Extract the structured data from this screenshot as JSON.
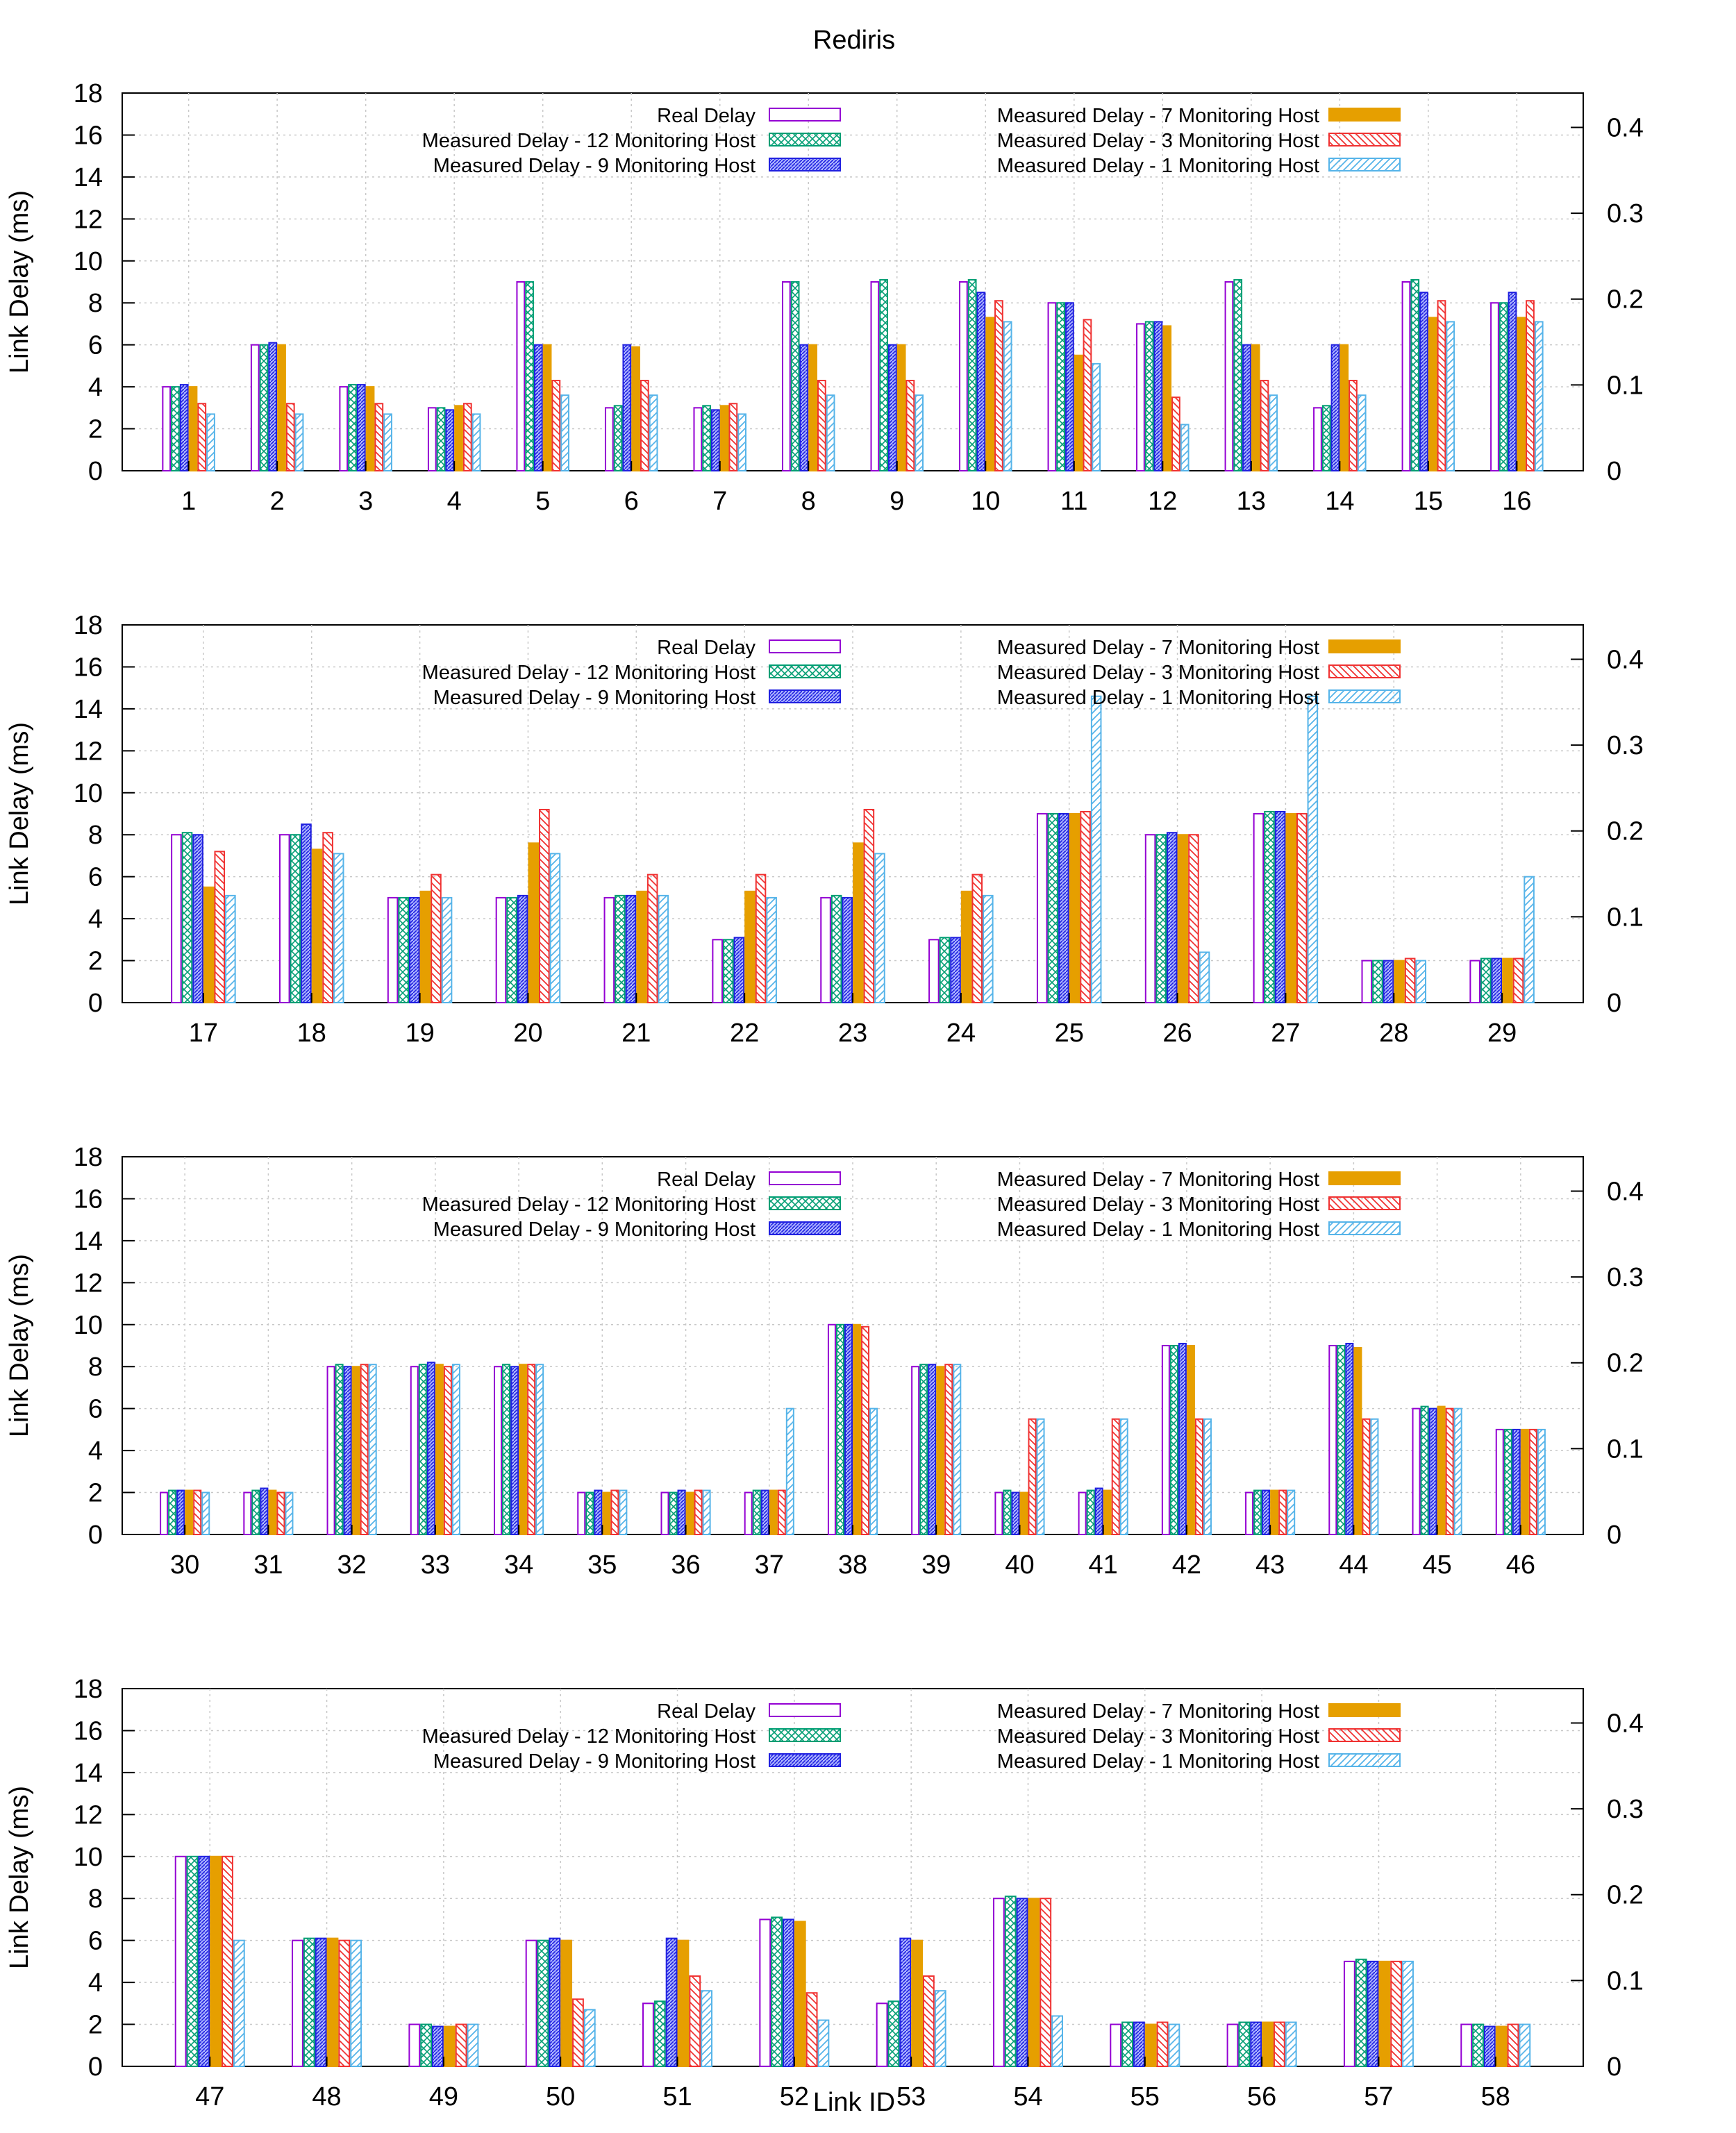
{
  "chart_data": {
    "type": "bar",
    "title": "Rediris",
    "xlabel": "Link ID",
    "ylabel": "Link Delay (ms)",
    "ylim": [
      0,
      18
    ],
    "yticks": [
      "0",
      "2",
      "4",
      "6",
      "8",
      "10",
      "12",
      "14",
      "16",
      "18"
    ],
    "y2lim": [
      0,
      0.44
    ],
    "y2ticks": [
      "0",
      "0.1",
      "0.2",
      "0.3",
      "0.4"
    ],
    "grid": true,
    "series_meta": [
      {
        "name": "Real Delay",
        "color": "#9400d3",
        "pattern": "empty"
      },
      {
        "name": "Measured Delay - 12 Monitoring Host",
        "color": "#009e73",
        "pattern": "crosshatch"
      },
      {
        "name": "Measured Delay - 9 Monitoring Host",
        "color": "#2020e0",
        "pattern": "dense"
      },
      {
        "name": "Measured Delay - 7 Monitoring Host",
        "color": "#e69f00",
        "pattern": "solid"
      },
      {
        "name": "Measured Delay - 3 Monitoring Host",
        "color": "#f03232",
        "pattern": "diag-back"
      },
      {
        "name": "Measured Delay - 1 Monitoring Host",
        "color": "#56b4e9",
        "pattern": "diag-fwd"
      }
    ],
    "legend_position": "top",
    "panels": [
      {
        "categories": [
          "1",
          "2",
          "3",
          "4",
          "5",
          "6",
          "7",
          "8",
          "9",
          "10",
          "11",
          "12",
          "13",
          "14",
          "15",
          "16"
        ],
        "series": [
          {
            "name": "Real Delay",
            "values": [
              4,
              6,
              4,
              3,
              9,
              3,
              3,
              9,
              9,
              9,
              8,
              7,
              9,
              3,
              9,
              8
            ]
          },
          {
            "name": "Measured Delay - 12 Monitoring Host",
            "values": [
              4,
              6,
              4.1,
              3,
              9,
              3.1,
              3.1,
              9,
              9.1,
              9.1,
              8,
              7.1,
              9.1,
              3.1,
              9.1,
              8
            ]
          },
          {
            "name": "Measured Delay - 9 Monitoring Host",
            "values": [
              4.1,
              6.1,
              4.1,
              2.9,
              6,
              6,
              2.9,
              6,
              6,
              8.5,
              8,
              7.1,
              6,
              6,
              8.5,
              8.5
            ]
          },
          {
            "name": "Measured Delay - 7 Monitoring Host",
            "values": [
              4,
              6,
              4,
              3.1,
              6,
              5.9,
              3.1,
              6,
              6,
              7.3,
              5.5,
              6.9,
              6,
              6,
              7.3,
              7.3
            ]
          },
          {
            "name": "Measured Delay - 3 Monitoring Host",
            "values": [
              3.2,
              3.2,
              3.2,
              3.2,
              4.3,
              4.3,
              3.2,
              4.3,
              4.3,
              8.1,
              7.2,
              3.5,
              4.3,
              4.3,
              8.1,
              8.1
            ]
          },
          {
            "name": "Measured Delay - 1 Monitoring Host",
            "values": [
              2.7,
              2.7,
              2.7,
              2.7,
              3.6,
              3.6,
              2.7,
              3.6,
              3.6,
              7.1,
              5.1,
              2.2,
              3.6,
              3.6,
              7.1,
              7.1
            ]
          }
        ]
      },
      {
        "categories": [
          "17",
          "18",
          "19",
          "20",
          "21",
          "22",
          "23",
          "24",
          "25",
          "26",
          "27",
          "28",
          "29"
        ],
        "series": [
          {
            "name": "Real Delay",
            "values": [
              8,
              8,
              5,
              5,
              5,
              3,
              5,
              3,
              9,
              8,
              9,
              2,
              2
            ]
          },
          {
            "name": "Measured Delay - 12 Monitoring Host",
            "values": [
              8.1,
              8,
              5,
              5,
              5.1,
              3,
              5.1,
              3.1,
              9,
              8,
              9.1,
              2,
              2.1
            ]
          },
          {
            "name": "Measured Delay - 9 Monitoring Host",
            "values": [
              8,
              8.5,
              5,
              5.1,
              5.1,
              3.1,
              5,
              3.1,
              9,
              8.1,
              9.1,
              2,
              2.1
            ]
          },
          {
            "name": "Measured Delay - 7 Monitoring Host",
            "values": [
              5.5,
              7.3,
              5.3,
              7.6,
              5.3,
              5.3,
              7.6,
              5.3,
              9,
              8,
              9,
              2,
              2.1
            ]
          },
          {
            "name": "Measured Delay - 3 Monitoring Host",
            "values": [
              7.2,
              8.1,
              6.1,
              9.2,
              6.1,
              6.1,
              9.2,
              6.1,
              9.1,
              8,
              9,
              2.1,
              2.1
            ]
          },
          {
            "name": "Measured Delay - 1 Monitoring Host",
            "values": [
              5.1,
              7.1,
              5,
              7.1,
              5.1,
              5,
              7.1,
              5.1,
              14.6,
              2.4,
              14.6,
              2,
              6
            ]
          }
        ]
      },
      {
        "categories": [
          "30",
          "31",
          "32",
          "33",
          "34",
          "35",
          "36",
          "37",
          "38",
          "39",
          "40",
          "41",
          "42",
          "43",
          "44",
          "45",
          "46"
        ],
        "series": [
          {
            "name": "Real Delay",
            "values": [
              2,
              2,
              8,
              8,
              8,
              2,
              2,
              2,
              10,
              8,
              2,
              2,
              9,
              2,
              9,
              6,
              5
            ]
          },
          {
            "name": "Measured Delay - 12 Monitoring Host",
            "values": [
              2.1,
              2.1,
              8.1,
              8.1,
              8.1,
              2,
              2,
              2.1,
              10,
              8.1,
              2.1,
              2.1,
              9,
              2.1,
              9,
              6.1,
              5
            ]
          },
          {
            "name": "Measured Delay - 9 Monitoring Host",
            "values": [
              2.1,
              2.2,
              8,
              8.2,
              8,
              2.1,
              2.1,
              2.1,
              10,
              8.1,
              2,
              2.2,
              9.1,
              2.1,
              9.1,
              6,
              5
            ]
          },
          {
            "name": "Measured Delay - 7 Monitoring Host",
            "values": [
              2.1,
              2.1,
              8,
              8.1,
              8.1,
              2,
              2,
              2.1,
              10,
              8,
              2,
              2.1,
              9,
              2.1,
              8.9,
              6.1,
              5
            ]
          },
          {
            "name": "Measured Delay - 3 Monitoring Host",
            "values": [
              2.1,
              2,
              8.1,
              8,
              8.1,
              2.1,
              2.1,
              2.1,
              9.9,
              8.1,
              5.5,
              5.5,
              5.5,
              2.1,
              5.5,
              6,
              5
            ]
          },
          {
            "name": "Measured Delay - 1 Monitoring Host",
            "values": [
              2,
              2,
              8.1,
              8.1,
              8.1,
              2.1,
              2.1,
              6,
              6,
              8.1,
              5.5,
              5.5,
              5.5,
              2.1,
              5.5,
              6,
              5
            ]
          }
        ]
      },
      {
        "categories": [
          "47",
          "48",
          "49",
          "50",
          "51",
          "52",
          "53",
          "54",
          "55",
          "56",
          "57",
          "58"
        ],
        "series": [
          {
            "name": "Real Delay",
            "values": [
              10,
              6,
              2,
              6,
              3,
              7,
              3,
              8,
              2,
              2,
              5,
              2
            ]
          },
          {
            "name": "Measured Delay - 12 Monitoring Host",
            "values": [
              10,
              6.1,
              2,
              6,
              3.1,
              7.1,
              3.1,
              8.1,
              2.1,
              2.1,
              5.1,
              2
            ]
          },
          {
            "name": "Measured Delay - 9 Monitoring Host",
            "values": [
              10,
              6.1,
              1.9,
              6.1,
              6.1,
              7,
              6.1,
              8,
              2.1,
              2.1,
              5,
              1.9
            ]
          },
          {
            "name": "Measured Delay - 7 Monitoring Host",
            "values": [
              10,
              6.1,
              1.9,
              6,
              6,
              6.9,
              6,
              8,
              2,
              2.1,
              5,
              1.9
            ]
          },
          {
            "name": "Measured Delay - 3 Monitoring Host",
            "values": [
              10,
              6,
              2,
              3.2,
              4.3,
              3.5,
              4.3,
              8,
              2.1,
              2.1,
              5,
              2
            ]
          },
          {
            "name": "Measured Delay - 1 Monitoring Host",
            "values": [
              6,
              6,
              2,
              2.7,
              3.6,
              2.2,
              3.6,
              2.4,
              2,
              2.1,
              5,
              2
            ]
          }
        ]
      }
    ]
  }
}
